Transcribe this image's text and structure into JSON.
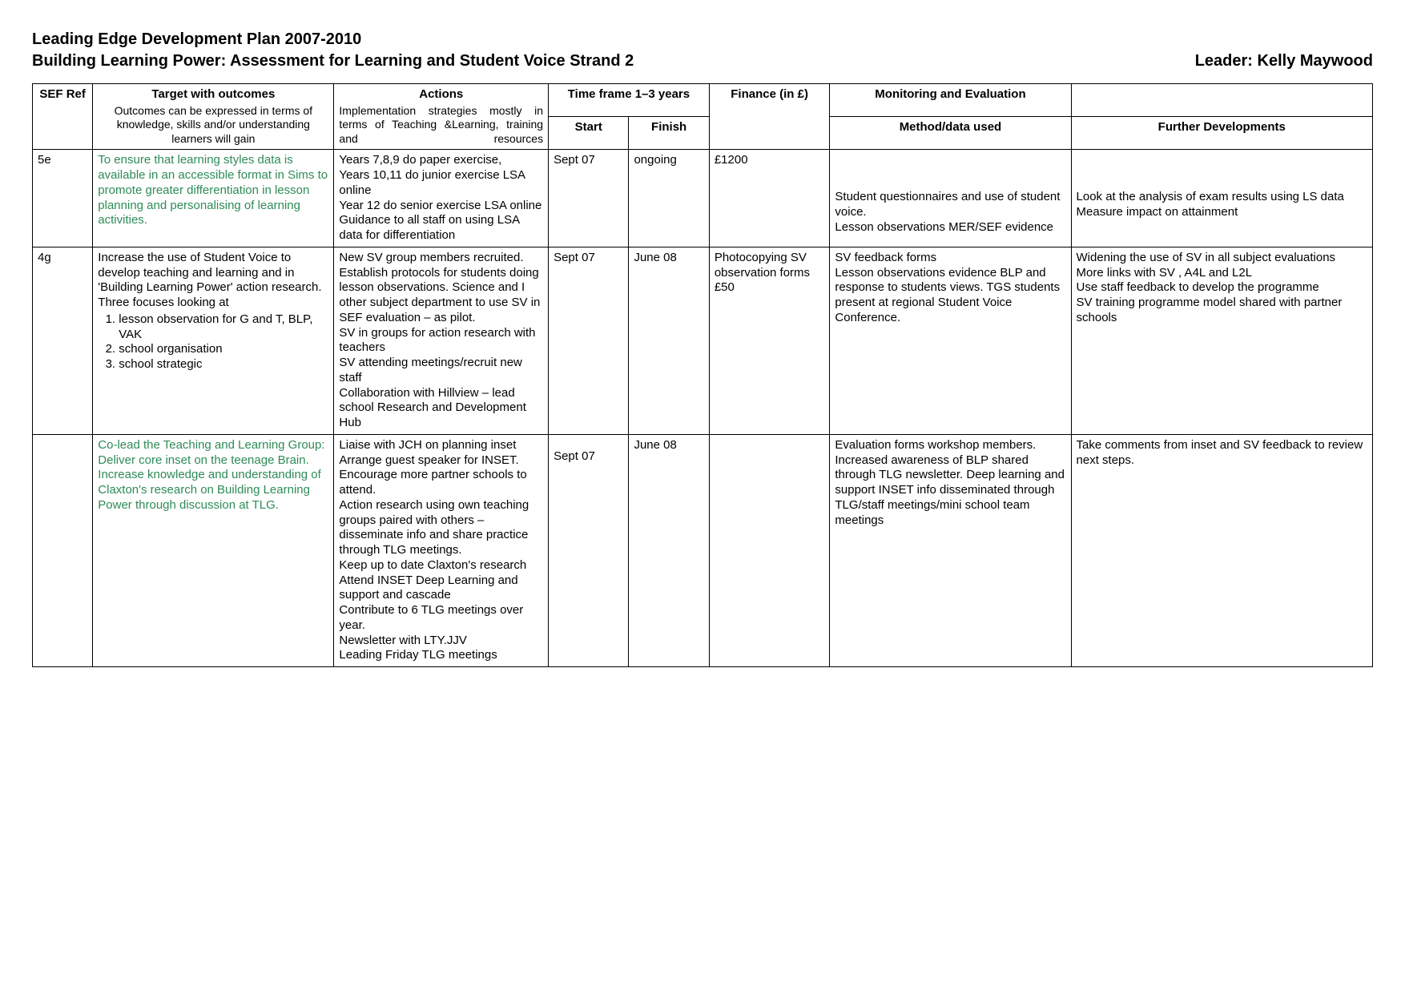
{
  "header": {
    "title_line1": "Leading Edge Development Plan 2007-2010",
    "title_line2": "Building Learning Power: Assessment for Learning and Student Voice Strand 2",
    "leader_label": "Leader: Kelly Maywood"
  },
  "colors": {
    "text": "#000000",
    "highlight": "#2e8b57",
    "background": "#ffffff",
    "border": "#000000"
  },
  "columns": {
    "ref_header": "SEF Ref",
    "target_header": "Target with outcomes",
    "target_sub": "Outcomes can be expressed in terms of knowledge, skills and/or understanding learners will gain",
    "actions_header": "Actions",
    "actions_sub": "Implementation strategies mostly in terms of Teaching &Learning, training and resources",
    "timeframe_header": "Time frame 1–3 years",
    "start_header": "Start",
    "finish_header": "Finish",
    "finance_header": "Finance (in £)",
    "monitoring_header": "Monitoring and Evaluation",
    "method_header": "Method/data used",
    "further_header": "Further Developments"
  },
  "rows": [
    {
      "ref": "5e",
      "target_highlight": true,
      "target": "To ensure that learning styles data is available in an accessible format in Sims to promote greater differentiation in lesson planning and personalising of learning activities.",
      "list_intro": "",
      "list": [],
      "actions": "Years 7,8,9 do paper exercise,\nYears 10,11 do junior exercise LSA online\nYear 12 do senior exercise LSA online\nGuidance to all staff on using LSA data for differentiation",
      "start": "Sept 07",
      "finish": "ongoing",
      "finance": "£1200",
      "method": "Student questionnaires and use of student voice.\nLesson observations MER/SEF evidence",
      "further": "Look at the analysis of exam results using LS data\nMeasure impact on attainment"
    },
    {
      "ref": "4g",
      "target_highlight": false,
      "target": "Increase the use of Student Voice to develop teaching and learning and in 'Building Learning Power' action research. Three focuses looking at",
      "list_intro": "",
      "list": [
        "lesson observation for G and T, BLP, VAK",
        "school organisation",
        "school strategic"
      ],
      "actions": "New SV group members recruited.  Establish protocols for students doing lesson observations.  Science and I other subject department to use SV in SEF evaluation – as pilot.\nSV in groups for action research with teachers\nSV attending meetings/recruit new staff\nCollaboration with Hillview – lead school Research and Development Hub",
      "start": "Sept 07",
      "finish": "June 08",
      "finance": "Photocopying SV observation forms\n£50",
      "method": "SV feedback forms\nLesson observations evidence BLP and response to students views.  TGS students present at regional Student Voice Conference.",
      "further": "Widening the use of SV in all subject evaluations\nMore links with SV , A4L and L2L\nUse staff feedback to develop the programme\nSV training programme model shared with partner schools"
    },
    {
      "ref": "",
      "target_highlight": true,
      "target": "Co-lead the Teaching and Learning Group: Deliver core inset on the teenage Brain. Increase knowledge and understanding of Claxton's research on Building Learning Power through discussion at TLG.",
      "list_intro": "",
      "list": [],
      "actions": "Liaise with JCH on planning inset\nArrange guest speaker for INSET.  Encourage more partner schools to attend.\nAction research using own teaching groups paired with others – disseminate info and share practice through TLG meetings.\nKeep up to date Claxton's research\nAttend INSET Deep Learning and support and cascade\nContribute to 6 TLG meetings over year.\nNewsletter with LTY.JJV\nLeading Friday TLG meetings",
      "start": "Sept 07",
      "finish": "June 08",
      "finance": "",
      "method": "Evaluation forms workshop members.\nIncreased awareness of BLP shared through TLG newsletter.  Deep learning and support INSET info disseminated through TLG/staff meetings/mini school team meetings",
      "further": "Take comments from inset and SV feedback to review next steps."
    }
  ]
}
